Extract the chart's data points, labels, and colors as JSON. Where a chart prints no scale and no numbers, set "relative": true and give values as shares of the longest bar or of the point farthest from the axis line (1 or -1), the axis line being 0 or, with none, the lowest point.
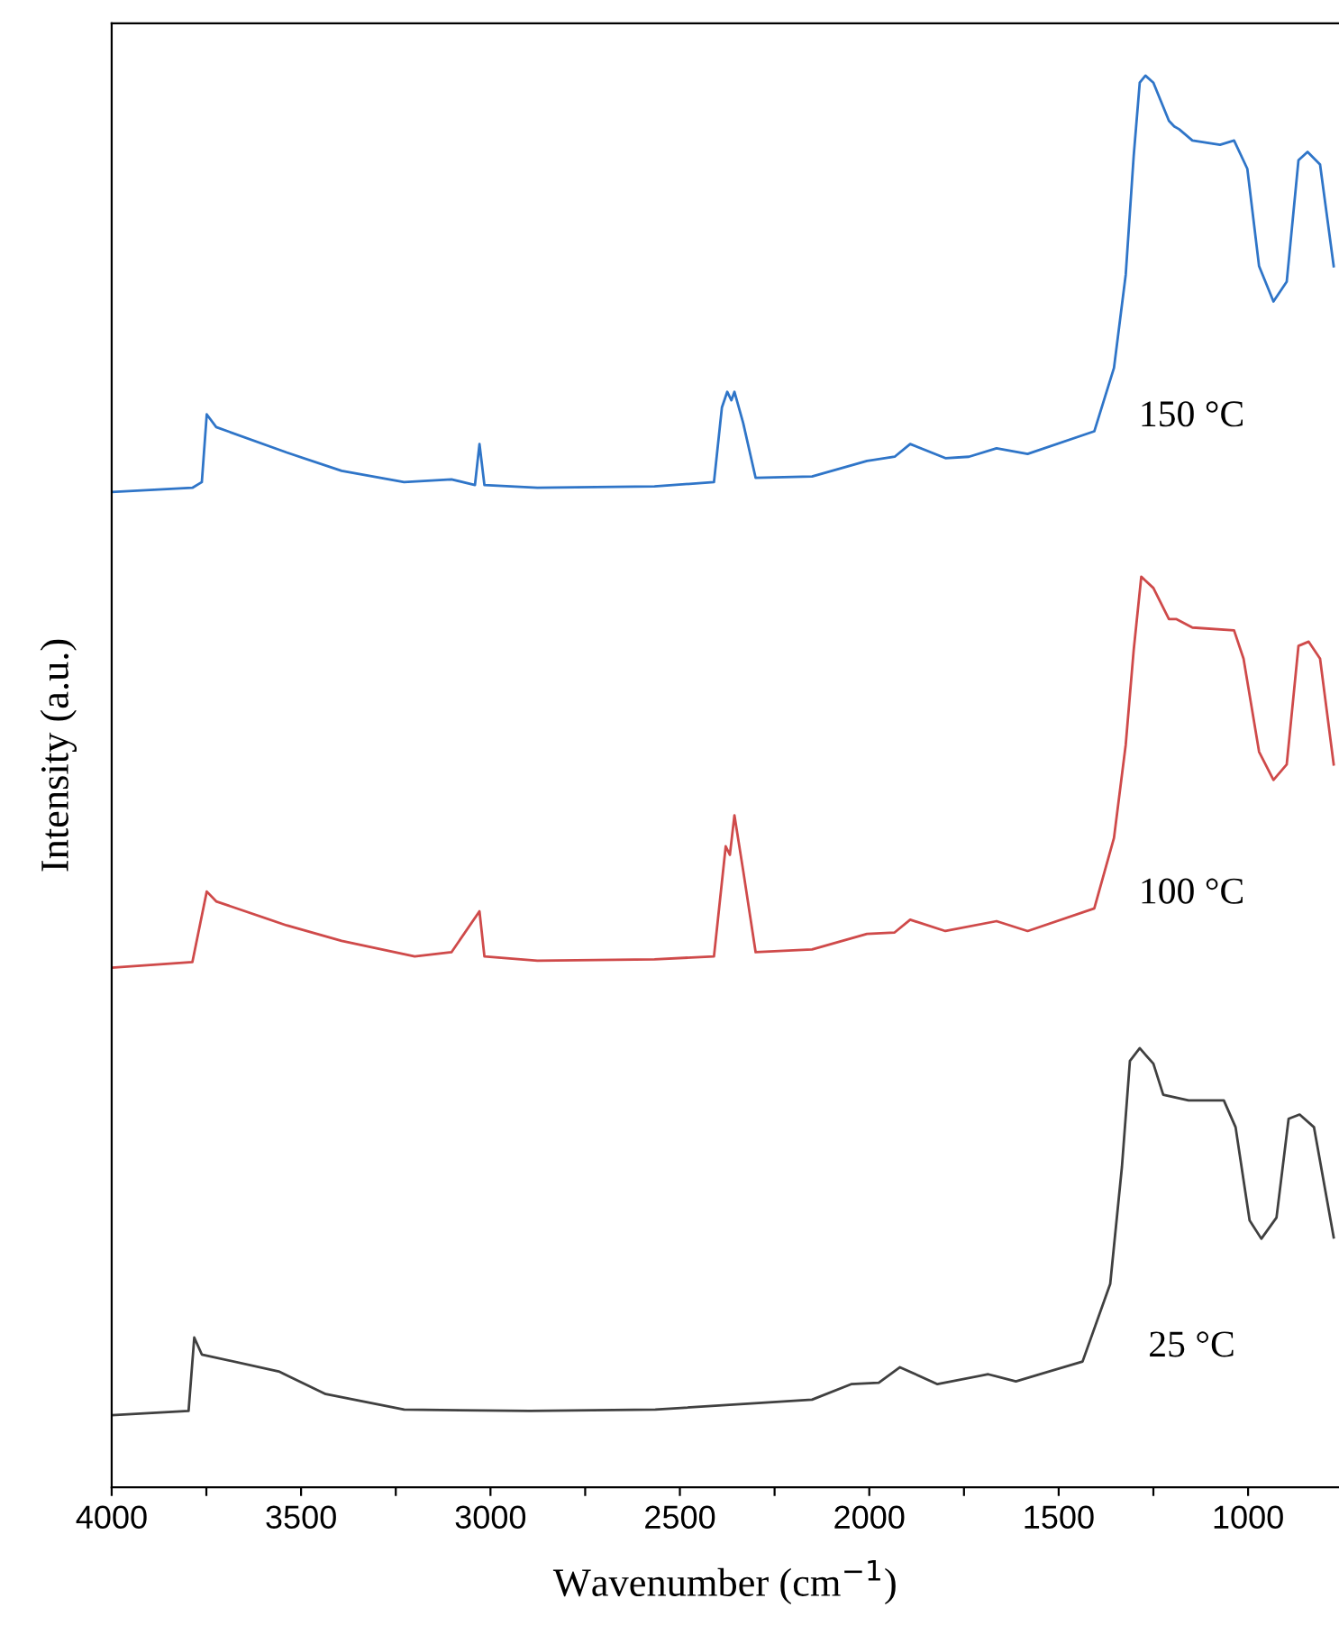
{
  "chart_data": {
    "type": "line",
    "relative": true,
    "xlabel": "Wavenumber (cm$^{−1}$)",
    "ylabel": "Intensity (a.u.)",
    "xlim": [
      4000,
      760
    ],
    "xticks": [
      4000,
      {
        "value": 3750,
        "label": null
      },
      3500,
      {
        "value": 3250,
        "label": null
      },
      3000,
      {
        "value": 2750,
        "label": null
      },
      2500,
      {
        "value": 2250,
        "label": null
      },
      2000,
      {
        "value": 1750,
        "label": null
      },
      1500,
      {
        "value": 1250,
        "label": null
      },
      1000
    ],
    "tick_labels": "x",
    "grid": false,
    "legend": false,
    "line_style": "solid",
    "marker": "none",
    "series": [
      {
        "name": "150 °C",
        "color": "#2f75c8",
        "x": [
          4000,
          3787,
          3762,
          3749,
          3724,
          3538,
          3393,
          3228,
          3103,
          3041,
          3029,
          3016,
          2876,
          2567,
          2410,
          2389,
          2375,
          2364,
          2356,
          2333,
          2300,
          2151,
          2006,
          1933,
          1892,
          1799,
          1737,
          1664,
          1582,
          1406,
          1354,
          1323,
          1302,
          1286,
          1271,
          1250,
          1209,
          1195,
          1182,
          1147,
          1074,
          1037,
          1002,
          971,
          933,
          898,
          867,
          843,
          810,
          774
        ],
        "values": [
          0.705,
          0.708,
          0.712,
          0.76,
          0.751,
          0.733,
          0.72,
          0.712,
          0.714,
          0.71,
          0.739,
          0.71,
          0.708,
          0.709,
          0.712,
          0.765,
          0.776,
          0.77,
          0.776,
          0.754,
          0.715,
          0.716,
          0.727,
          0.73,
          0.739,
          0.729,
          0.73,
          0.736,
          0.732,
          0.748,
          0.793,
          0.859,
          0.943,
          0.995,
          1.0,
          0.995,
          0.968,
          0.964,
          0.962,
          0.954,
          0.951,
          0.954,
          0.934,
          0.865,
          0.84,
          0.854,
          0.94,
          0.946,
          0.937,
          0.865
        ]
      },
      {
        "name": "100 °C",
        "color": "#cf4a4a",
        "x": [
          4000,
          3787,
          3749,
          3724,
          3538,
          3393,
          3200,
          3103,
          3029,
          3016,
          2876,
          2567,
          2410,
          2379,
          2368,
          2356,
          2333,
          2300,
          2151,
          2006,
          1933,
          1892,
          1799,
          1664,
          1582,
          1406,
          1354,
          1323,
          1302,
          1282,
          1250,
          1209,
          1190,
          1147,
          1037,
          1012,
          971,
          933,
          898,
          867,
          840,
          810,
          774
        ],
        "values": [
          0.368,
          0.372,
          0.422,
          0.415,
          0.398,
          0.387,
          0.376,
          0.379,
          0.408,
          0.376,
          0.373,
          0.374,
          0.376,
          0.454,
          0.448,
          0.476,
          0.437,
          0.379,
          0.381,
          0.392,
          0.393,
          0.402,
          0.394,
          0.401,
          0.394,
          0.41,
          0.46,
          0.526,
          0.593,
          0.645,
          0.637,
          0.615,
          0.615,
          0.609,
          0.607,
          0.587,
          0.521,
          0.501,
          0.512,
          0.596,
          0.599,
          0.587,
          0.512
        ]
      },
      {
        "name": "25 °C",
        "color": "#404040",
        "x": [
          4000,
          3797,
          3782,
          3762,
          3559,
          3435,
          3228,
          2896,
          2565,
          2151,
          2048,
          1975,
          1919,
          1820,
          1686,
          1613,
          1437,
          1364,
          1333,
          1312,
          1286,
          1250,
          1224,
          1157,
          1064,
          1033,
          996,
          965,
          925,
          893,
          864,
          826,
          774
        ],
        "values": [
          0.051,
          0.054,
          0.106,
          0.094,
          0.082,
          0.066,
          0.055,
          0.054,
          0.055,
          0.062,
          0.073,
          0.074,
          0.085,
          0.073,
          0.08,
          0.075,
          0.089,
          0.144,
          0.227,
          0.302,
          0.311,
          0.3,
          0.278,
          0.274,
          0.274,
          0.255,
          0.189,
          0.176,
          0.191,
          0.261,
          0.264,
          0.255,
          0.177
        ]
      }
    ]
  }
}
